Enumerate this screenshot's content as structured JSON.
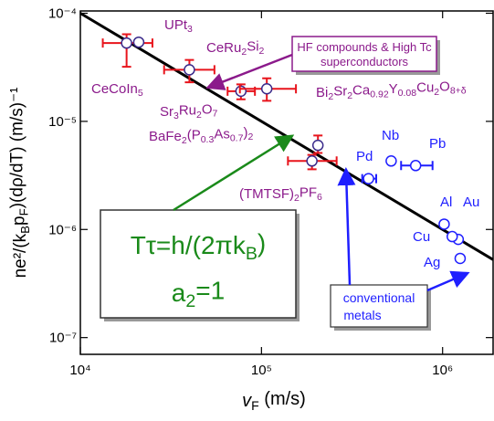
{
  "chart_data": {
    "type": "scatter",
    "x_label": [
      "v",
      "F",
      " (m/s)"
    ],
    "y_label": [
      "ne²/(k",
      "B",
      "p",
      "F",
      ")(dρ/dT) (m/s)⁻¹"
    ],
    "x_log": true,
    "y_log": true,
    "xlim": [
      10000,
      1900000
    ],
    "ylim": [
      7e-08,
      0.000105
    ],
    "xticks": [
      {
        "value": 10000,
        "label": "10⁴"
      },
      {
        "value": 100000,
        "label": "10⁵"
      },
      {
        "value": 1000000,
        "label": "10⁶"
      }
    ],
    "yticks": [
      {
        "value": 1e-07,
        "label": "10⁻⁷"
      },
      {
        "value": 1e-06,
        "label": "10⁻⁶"
      },
      {
        "value": 1e-05,
        "label": "10⁻⁵"
      },
      {
        "value": 0.0001,
        "label": "10⁻⁴"
      }
    ],
    "series": [
      {
        "color": "#e8141c",
        "marker_color": "#3a2a8a",
        "label_color": "#8b1a8b",
        "labels": [
          [
            "CeCoIn",
            "5"
          ],
          [
            "UPt",
            "3"
          ],
          [
            "CeRu",
            "2",
            "Si",
            "2"
          ],
          [
            "Sr",
            "3",
            "Ru",
            "2",
            "O",
            "7"
          ],
          [
            "BaFe",
            "2",
            "(P",
            "0.3",
            "As",
            "0.7",
            ")",
            "2"
          ],
          [
            "Bi",
            "2",
            "Sr",
            "2",
            "Ca",
            "0.92",
            "Y",
            "0.08",
            "Cu",
            "2",
            "O",
            "8+δ"
          ],
          [
            "(TMTSF)",
            "2",
            "PF",
            "6"
          ]
        ],
        "x": [
          18000,
          21000,
          40000,
          77000,
          107000,
          205000,
          190000
        ],
        "y": [
          5.3e-05,
          5.4e-05,
          3e-05,
          1.9e-05,
          2e-05,
          6e-06,
          4.3e-06
        ],
        "x_low": [
          13300,
          null,
          29000,
          65000,
          76000,
          null,
          140000
        ],
        "x_high": [
          25000,
          null,
          55000,
          92000,
          155000,
          null,
          260000
        ],
        "y_low": [
          3.2e-05,
          null,
          2.3e-05,
          1.6e-05,
          1.55e-05,
          5.1e-06,
          3.6e-06
        ],
        "y_high": [
          6.4e-05,
          null,
          3.7e-05,
          2.2e-05,
          2.5e-05,
          7.4e-06,
          4.9e-06
        ]
      },
      {
        "color": "#1f1fff",
        "marker_color": "#1f1fff",
        "label_color": "#1f1fff",
        "labels": [
          [
            "Pd"
          ],
          [
            "Nb"
          ],
          [
            "Pb"
          ],
          [
            "Al"
          ],
          [
            "Au"
          ],
          [
            "Cu"
          ],
          [
            "Ag"
          ]
        ],
        "x": [
          390000,
          520000,
          710000,
          1020000,
          1220000,
          1130000,
          1250000
        ],
        "y": [
          2.95e-06,
          4.3e-06,
          3.9e-06,
          1.12e-06,
          8.1e-07,
          8.6e-07,
          5.4e-07
        ],
        "x_low": [
          360000,
          null,
          590000,
          null,
          null,
          null,
          null
        ],
        "x_high": [
          430000,
          null,
          880000,
          null,
          null,
          null,
          null
        ],
        "y_low": [
          null,
          null,
          null,
          null,
          null,
          null,
          null
        ],
        "y_high": [
          null,
          null,
          null,
          null,
          null,
          null,
          null
        ]
      }
    ],
    "fit_line": {
      "color": "#000000",
      "x": [
        10000,
        1900000
      ],
      "y": [
        0.0001,
        5.26e-07
      ]
    },
    "annotations": {
      "hf_box": [
        "HF compounds & High Tc",
        "superconductors"
      ],
      "formula": [
        [
          "Tτ=h/(2πk",
          "B",
          ")"
        ],
        [
          "a",
          "2",
          "=1"
        ]
      ],
      "metals_box": [
        "conventional",
        "metals"
      ]
    }
  }
}
